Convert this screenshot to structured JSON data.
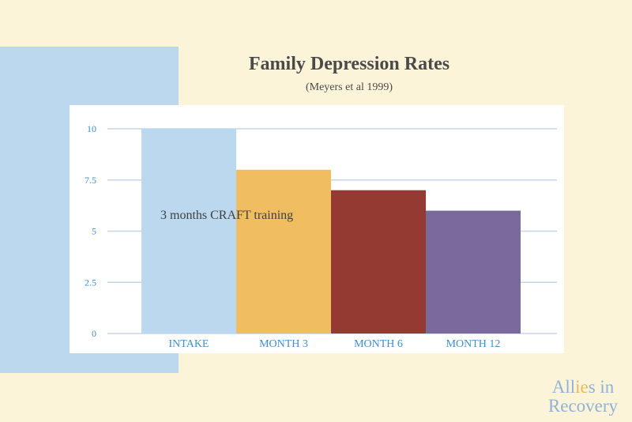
{
  "page": {
    "background": "#fcf4d8",
    "panel_color": "#bcd8ee"
  },
  "chart_data": {
    "type": "bar",
    "title": "Family Depression Rates",
    "subtitle": "(Meyers et al 1999)",
    "categories": [
      "INTAKE",
      "MONTH 3",
      "MONTH 6",
      "MONTH 12"
    ],
    "values": [
      10,
      8,
      7,
      6
    ],
    "colors": [
      "#bcd8ee",
      "#f0be60",
      "#943a33",
      "#7a6a9c"
    ],
    "ylim": [
      0,
      10
    ],
    "yticks": [
      0,
      2.5,
      5,
      7.5,
      10
    ],
    "ytick_labels": [
      "0",
      "2.5",
      "5",
      "7.5",
      "10"
    ],
    "grid": true,
    "annotation": "3 months CRAFT training",
    "axis_label_color": "#3f8fd0"
  },
  "logo": {
    "line1": "Allies in",
    "line2": "Recovery"
  }
}
